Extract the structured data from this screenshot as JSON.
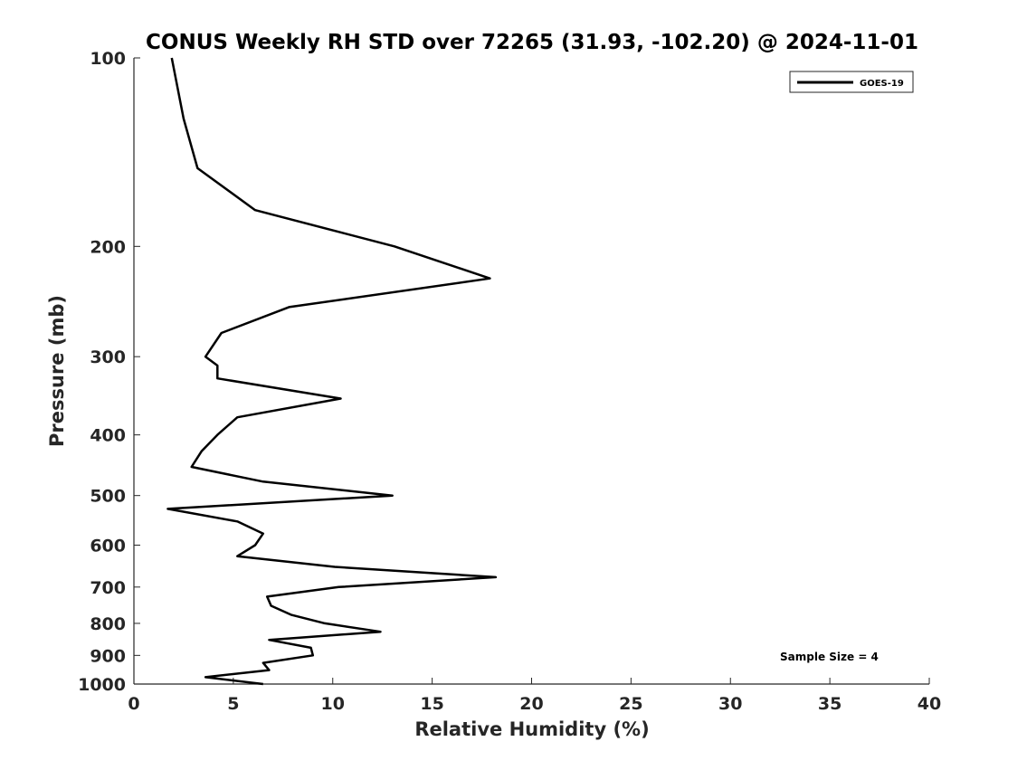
{
  "chart_data": {
    "type": "line",
    "title": "CONUS Weekly RH STD over 72265 (31.93, -102.20) @ 2024-11-01",
    "xlabel": "Relative Humidity (%)",
    "ylabel": "Pressure (mb)",
    "xlim": [
      0,
      40
    ],
    "ylim": [
      100,
      1000
    ],
    "y_scale": "log",
    "y_reversed": true,
    "x_ticks": [
      "0",
      "5",
      "10",
      "15",
      "20",
      "25",
      "30",
      "35",
      "40"
    ],
    "y_ticks": [
      "100",
      "200",
      "300",
      "400",
      "500",
      "600",
      "700",
      "800",
      "900",
      "1000"
    ],
    "grid": false,
    "legend_position": "top-right",
    "series": [
      {
        "name": "GOES-19",
        "color": "#000000",
        "points": [
          {
            "x": 1.9,
            "y": 100
          },
          {
            "x": 2.5,
            "y": 125
          },
          {
            "x": 3.2,
            "y": 150
          },
          {
            "x": 6.1,
            "y": 175
          },
          {
            "x": 13.1,
            "y": 200
          },
          {
            "x": 17.9,
            "y": 225
          },
          {
            "x": 7.8,
            "y": 250
          },
          {
            "x": 4.4,
            "y": 275
          },
          {
            "x": 3.6,
            "y": 300
          },
          {
            "x": 4.2,
            "y": 310
          },
          {
            "x": 4.2,
            "y": 325
          },
          {
            "x": 10.4,
            "y": 350
          },
          {
            "x": 5.2,
            "y": 375
          },
          {
            "x": 4.2,
            "y": 400
          },
          {
            "x": 3.4,
            "y": 425
          },
          {
            "x": 2.9,
            "y": 450
          },
          {
            "x": 6.5,
            "y": 475
          },
          {
            "x": 13.0,
            "y": 500
          },
          {
            "x": 1.7,
            "y": 525
          },
          {
            "x": 5.2,
            "y": 550
          },
          {
            "x": 6.5,
            "y": 575
          },
          {
            "x": 6.1,
            "y": 600
          },
          {
            "x": 5.2,
            "y": 625
          },
          {
            "x": 10.1,
            "y": 650
          },
          {
            "x": 18.2,
            "y": 675
          },
          {
            "x": 10.3,
            "y": 700
          },
          {
            "x": 6.7,
            "y": 725
          },
          {
            "x": 6.9,
            "y": 750
          },
          {
            "x": 7.9,
            "y": 775
          },
          {
            "x": 9.6,
            "y": 800
          },
          {
            "x": 12.4,
            "y": 825
          },
          {
            "x": 6.8,
            "y": 850
          },
          {
            "x": 8.9,
            "y": 875
          },
          {
            "x": 9.0,
            "y": 900
          },
          {
            "x": 6.5,
            "y": 925
          },
          {
            "x": 6.8,
            "y": 950
          },
          {
            "x": 3.6,
            "y": 975
          },
          {
            "x": 6.5,
            "y": 1000
          }
        ]
      }
    ],
    "annotations": [
      {
        "text": "Sample Size = 4",
        "position": "bottom-right"
      }
    ]
  }
}
